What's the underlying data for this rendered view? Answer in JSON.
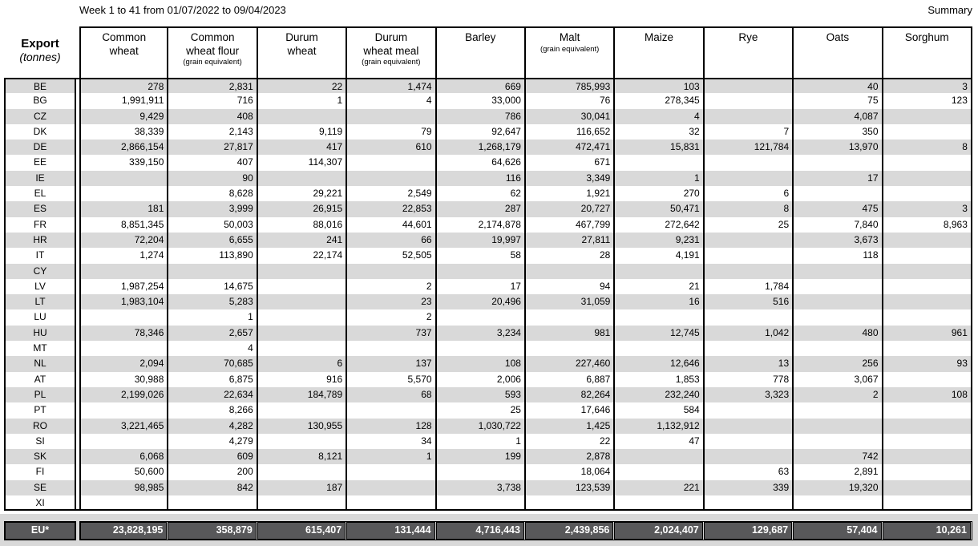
{
  "header": {
    "title": "Week 1 to 41 from 01/07/2022 to 09/04/2023",
    "summary_label": "Summary"
  },
  "table": {
    "corner": {
      "line1": "Export",
      "line2": "(tonnes)"
    },
    "columns": [
      {
        "l1": "Common",
        "l2": "wheat",
        "sub": ""
      },
      {
        "l1": "Common",
        "l2": "wheat flour",
        "sub": "(grain equivalent)"
      },
      {
        "l1": "Durum",
        "l2": "wheat",
        "sub": ""
      },
      {
        "l1": "Durum",
        "l2": "wheat meal",
        "sub": "(grain equivalent)"
      },
      {
        "l1": "Barley",
        "l2": "",
        "sub": ""
      },
      {
        "l1": "Malt",
        "l2": "",
        "sub": "(grain equivalent)"
      },
      {
        "l1": "Maize",
        "l2": "",
        "sub": ""
      },
      {
        "l1": "Rye",
        "l2": "",
        "sub": ""
      },
      {
        "l1": "Oats",
        "l2": "",
        "sub": ""
      },
      {
        "l1": "Sorghum",
        "l2": "",
        "sub": ""
      }
    ],
    "rows": [
      {
        "code": "BE",
        "values": [
          "278",
          "2,831",
          "22",
          "1,474",
          "669",
          "785,993",
          "103",
          "",
          "40",
          "3"
        ]
      },
      {
        "code": "BG",
        "values": [
          "1,991,911",
          "716",
          "1",
          "4",
          "33,000",
          "76",
          "278,345",
          "",
          "75",
          "123"
        ]
      },
      {
        "code": "CZ",
        "values": [
          "9,429",
          "408",
          "",
          "",
          "786",
          "30,041",
          "4",
          "",
          "4,087",
          ""
        ]
      },
      {
        "code": "DK",
        "values": [
          "38,339",
          "2,143",
          "9,119",
          "79",
          "92,647",
          "116,652",
          "32",
          "7",
          "350",
          ""
        ]
      },
      {
        "code": "DE",
        "values": [
          "2,866,154",
          "27,817",
          "417",
          "610",
          "1,268,179",
          "472,471",
          "15,831",
          "121,784",
          "13,970",
          "8"
        ]
      },
      {
        "code": "EE",
        "values": [
          "339,150",
          "407",
          "114,307",
          "",
          "64,626",
          "671",
          "",
          "",
          "",
          ""
        ]
      },
      {
        "code": "IE",
        "values": [
          "",
          "90",
          "",
          "",
          "116",
          "3,349",
          "1",
          "",
          "17",
          ""
        ]
      },
      {
        "code": "EL",
        "values": [
          "",
          "8,628",
          "29,221",
          "2,549",
          "62",
          "1,921",
          "270",
          "6",
          "",
          ""
        ]
      },
      {
        "code": "ES",
        "values": [
          "181",
          "3,999",
          "26,915",
          "22,853",
          "287",
          "20,727",
          "50,471",
          "8",
          "475",
          "3"
        ]
      },
      {
        "code": "FR",
        "values": [
          "8,851,345",
          "50,003",
          "88,016",
          "44,601",
          "2,174,878",
          "467,799",
          "272,642",
          "25",
          "7,840",
          "8,963"
        ]
      },
      {
        "code": "HR",
        "values": [
          "72,204",
          "6,655",
          "241",
          "66",
          "19,997",
          "27,811",
          "9,231",
          "",
          "3,673",
          ""
        ]
      },
      {
        "code": "IT",
        "values": [
          "1,274",
          "113,890",
          "22,174",
          "52,505",
          "58",
          "28",
          "4,191",
          "",
          "118",
          ""
        ]
      },
      {
        "code": "CY",
        "values": [
          "",
          "",
          "",
          "",
          "",
          "",
          "",
          "",
          "",
          ""
        ]
      },
      {
        "code": "LV",
        "values": [
          "1,987,254",
          "14,675",
          "",
          "2",
          "17",
          "94",
          "21",
          "1,784",
          "",
          ""
        ]
      },
      {
        "code": "LT",
        "values": [
          "1,983,104",
          "5,283",
          "",
          "23",
          "20,496",
          "31,059",
          "16",
          "516",
          "",
          ""
        ]
      },
      {
        "code": "LU",
        "values": [
          "",
          "1",
          "",
          "2",
          "",
          "",
          "",
          "",
          "",
          ""
        ]
      },
      {
        "code": "HU",
        "values": [
          "78,346",
          "2,657",
          "",
          "737",
          "3,234",
          "981",
          "12,745",
          "1,042",
          "480",
          "961"
        ]
      },
      {
        "code": "MT",
        "values": [
          "",
          "4",
          "",
          "",
          "",
          "",
          "",
          "",
          "",
          ""
        ]
      },
      {
        "code": "NL",
        "values": [
          "2,094",
          "70,685",
          "6",
          "137",
          "108",
          "227,460",
          "12,646",
          "13",
          "256",
          "93"
        ]
      },
      {
        "code": "AT",
        "values": [
          "30,988",
          "6,875",
          "916",
          "5,570",
          "2,006",
          "6,887",
          "1,853",
          "778",
          "3,067",
          ""
        ]
      },
      {
        "code": "PL",
        "values": [
          "2,199,026",
          "22,634",
          "184,789",
          "68",
          "593",
          "82,264",
          "232,240",
          "3,323",
          "2",
          "108"
        ]
      },
      {
        "code": "PT",
        "values": [
          "",
          "8,266",
          "",
          "",
          "25",
          "17,646",
          "584",
          "",
          "",
          ""
        ]
      },
      {
        "code": "RO",
        "values": [
          "3,221,465",
          "4,282",
          "130,955",
          "128",
          "1,030,722",
          "1,425",
          "1,132,912",
          "",
          "",
          ""
        ]
      },
      {
        "code": "SI",
        "values": [
          "",
          "4,279",
          "",
          "34",
          "1",
          "22",
          "47",
          "",
          "",
          ""
        ]
      },
      {
        "code": "SK",
        "values": [
          "6,068",
          "609",
          "8,121",
          "1",
          "199",
          "2,878",
          "",
          "",
          "742",
          ""
        ]
      },
      {
        "code": "FI",
        "values": [
          "50,600",
          "200",
          "",
          "",
          "",
          "18,064",
          "",
          "63",
          "2,891",
          ""
        ]
      },
      {
        "code": "SE",
        "values": [
          "98,985",
          "842",
          "187",
          "",
          "3,738",
          "123,539",
          "221",
          "339",
          "19,320",
          ""
        ]
      },
      {
        "code": "XI",
        "values": [
          "",
          "",
          "",
          "",
          "",
          "",
          "",
          "",
          "",
          ""
        ]
      }
    ],
    "eu_total": {
      "code": "EU*",
      "values": [
        "23,828,195",
        "358,879",
        "615,407",
        "131,444",
        "4,716,443",
        "2,439,856",
        "2,024,407",
        "129,687",
        "57,404",
        "10,261"
      ]
    }
  },
  "colors": {
    "stripe": "#d9d9d9",
    "eu_row_bg": "#58585a",
    "border": "#000000"
  }
}
